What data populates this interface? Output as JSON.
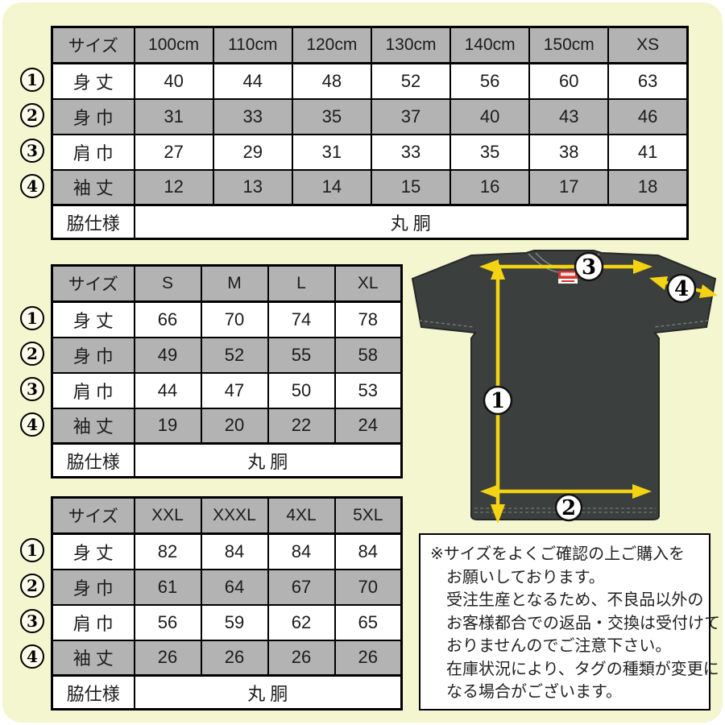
{
  "colors": {
    "background": "#f4f6cf",
    "cell_gray": "#b3b3b3",
    "cell_white": "#ffffff",
    "border": "#000000",
    "shirt_dark": "#3b3f3e",
    "arrow_yellow": "#f4d312",
    "tag_red": "#d2342b"
  },
  "tables": [
    {
      "name": "kids-sizes",
      "columns": [
        "サイズ",
        "100cm",
        "110cm",
        "120cm",
        "130cm",
        "140cm",
        "150cm",
        "XS"
      ],
      "rows": [
        {
          "num": "1",
          "label": "身 丈",
          "values": [
            "40",
            "44",
            "48",
            "52",
            "56",
            "60",
            "63"
          ]
        },
        {
          "num": "2",
          "label": "身 巾",
          "values": [
            "31",
            "33",
            "35",
            "37",
            "40",
            "43",
            "46"
          ]
        },
        {
          "num": "3",
          "label": "肩 巾",
          "values": [
            "27",
            "29",
            "31",
            "33",
            "35",
            "38",
            "41"
          ]
        },
        {
          "num": "4",
          "label": "袖 丈",
          "values": [
            "12",
            "13",
            "14",
            "15",
            "16",
            "17",
            "18"
          ]
        }
      ],
      "footer_label": "脇仕様",
      "footer_value": "丸 胴"
    },
    {
      "name": "adult-sizes",
      "columns": [
        "サイズ",
        "S",
        "M",
        "L",
        "XL"
      ],
      "rows": [
        {
          "num": "1",
          "label": "身 丈",
          "values": [
            "66",
            "70",
            "74",
            "78"
          ]
        },
        {
          "num": "2",
          "label": "身 巾",
          "values": [
            "49",
            "52",
            "55",
            "58"
          ]
        },
        {
          "num": "3",
          "label": "肩 巾",
          "values": [
            "44",
            "47",
            "50",
            "53"
          ]
        },
        {
          "num": "4",
          "label": "袖 丈",
          "values": [
            "19",
            "20",
            "22",
            "24"
          ]
        }
      ],
      "footer_label": "脇仕様",
      "footer_value": "丸 胴"
    },
    {
      "name": "big-sizes",
      "columns": [
        "サイズ",
        "XXL",
        "XXXL",
        "4XL",
        "5XL"
      ],
      "rows": [
        {
          "num": "1",
          "label": "身 丈",
          "values": [
            "82",
            "84",
            "84",
            "84"
          ]
        },
        {
          "num": "2",
          "label": "身 巾",
          "values": [
            "61",
            "64",
            "67",
            "70"
          ]
        },
        {
          "num": "3",
          "label": "肩 巾",
          "values": [
            "56",
            "59",
            "62",
            "65"
          ]
        },
        {
          "num": "4",
          "label": "袖 丈",
          "values": [
            "26",
            "26",
            "26",
            "26"
          ]
        }
      ],
      "footer_label": "脇仕様",
      "footer_value": "丸 胴"
    }
  ],
  "diagram": {
    "markers": [
      {
        "label": "1",
        "meaning": "身丈"
      },
      {
        "label": "2",
        "meaning": "身巾"
      },
      {
        "label": "3",
        "meaning": "肩巾"
      },
      {
        "label": "4",
        "meaning": "袖丈"
      }
    ]
  },
  "note": {
    "lines": [
      "※サイズをよくご確認の上ご購入を",
      "お願いしております。",
      "受注生産となるため、不良品以外の",
      "お客様都合での返品・交換は受付けて",
      "おりませんのでご注意下さい。",
      "在庫状況により、タグの種類が変更に",
      "なる場合がございます。"
    ]
  }
}
